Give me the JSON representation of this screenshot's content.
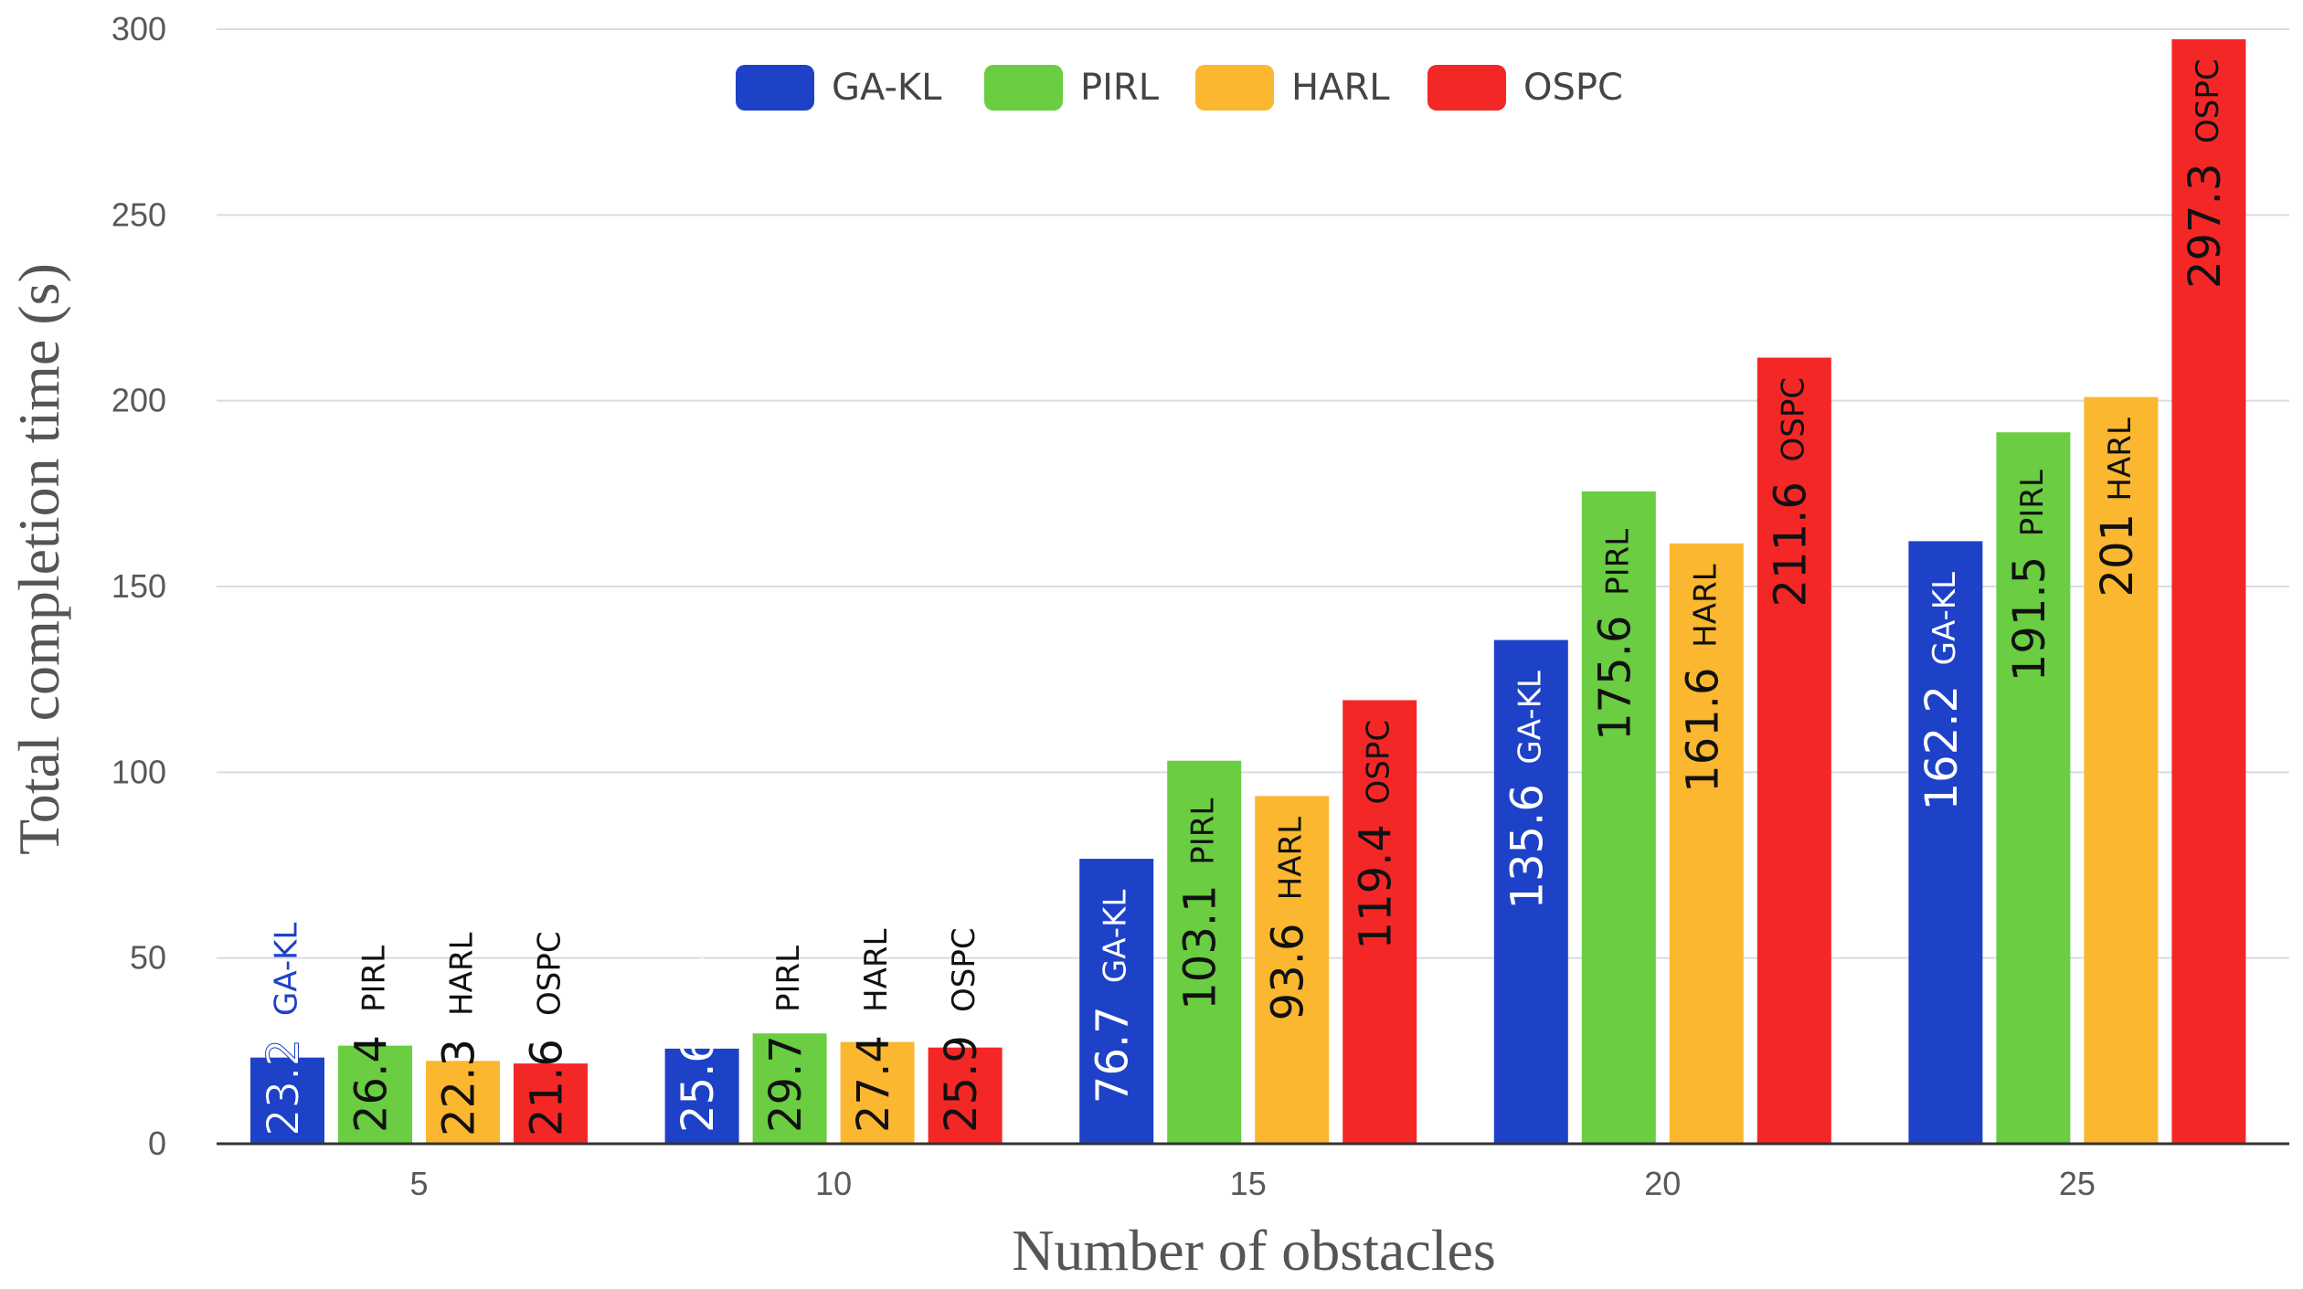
{
  "chart_data": {
    "type": "bar",
    "title": "",
    "xlabel": "Number of obstacles",
    "ylabel": "Total completion time (s)",
    "categories": [
      "5",
      "10",
      "15",
      "20",
      "25"
    ],
    "ylim": [
      0,
      300
    ],
    "yticks": [
      "0",
      "50",
      "100",
      "150",
      "200",
      "250",
      "300"
    ],
    "grid": true,
    "legend_position": "top-center",
    "series": [
      {
        "name": "GA-KL",
        "color": "#1d42c8",
        "values": [
          23.2,
          25.6,
          76.7,
          135.6,
          162.2
        ]
      },
      {
        "name": "PIRL",
        "color": "#6acd42",
        "values": [
          26.4,
          29.7,
          103.1,
          175.6,
          191.5
        ]
      },
      {
        "name": "HARL",
        "color": "#fbb72f",
        "values": [
          22.3,
          27.4,
          93.6,
          161.6,
          201
        ]
      },
      {
        "name": "OSPC",
        "color": "#f42727",
        "values": [
          21.6,
          25.9,
          119.4,
          211.6,
          297.3
        ]
      }
    ],
    "value_labels": [
      [
        "23.2",
        "25.6",
        "76.7",
        "135.6",
        "162.2"
      ],
      [
        "26.4",
        "29.7",
        "103.1",
        "175.6",
        "191.5"
      ],
      [
        "22.3",
        "27.4",
        "93.6",
        "161.6",
        "201"
      ],
      [
        "21.6",
        "25.9",
        "119.4",
        "211.6",
        "297.3"
      ]
    ]
  }
}
